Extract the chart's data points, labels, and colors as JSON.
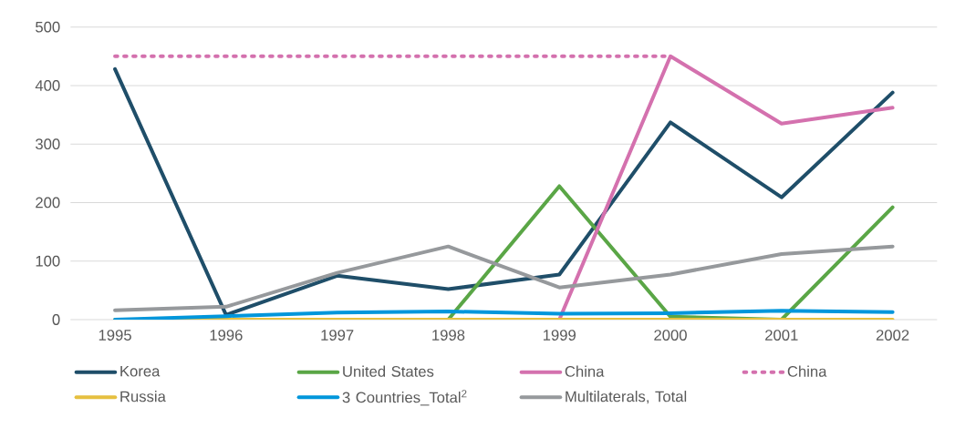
{
  "chart_data": {
    "type": "line",
    "categories": [
      "1995",
      "1996",
      "1997",
      "1998",
      "1999",
      "2000",
      "2001",
      "2002"
    ],
    "ylim": [
      0,
      500
    ],
    "yticks": [
      0,
      100,
      200,
      300,
      400,
      500
    ],
    "grid": "y",
    "legend": "bottom",
    "series": [
      {
        "name": "Korea",
        "color": "#1f4e69",
        "values": [
          428,
          8,
          75,
          52,
          77,
          337,
          209,
          388
        ]
      },
      {
        "name": "United States",
        "color": "#5aa646",
        "values": [
          null,
          null,
          null,
          0,
          228,
          5,
          0,
          192
        ]
      },
      {
        "name": "China",
        "color": "#d471ae",
        "values": [
          null,
          null,
          null,
          0,
          0,
          450,
          335,
          362
        ]
      },
      {
        "name": "China",
        "color": "#d471ae",
        "line_style": "dotted",
        "values": [
          450,
          450,
          450,
          450,
          450,
          450,
          null,
          null
        ]
      },
      {
        "name": "Russia",
        "color": "#e6c040",
        "values": [
          0,
          0,
          0,
          0,
          0,
          0,
          0,
          0
        ]
      },
      {
        "name": "3 Countries_Total$^{2}$",
        "color": "#0096db",
        "values": [
          0,
          6,
          12,
          14,
          10,
          11,
          15,
          13
        ]
      },
      {
        "name": "Multilaterals, Total",
        "color": "#96999c",
        "values": [
          16,
          22,
          80,
          125,
          55,
          77,
          112,
          125
        ]
      }
    ]
  }
}
